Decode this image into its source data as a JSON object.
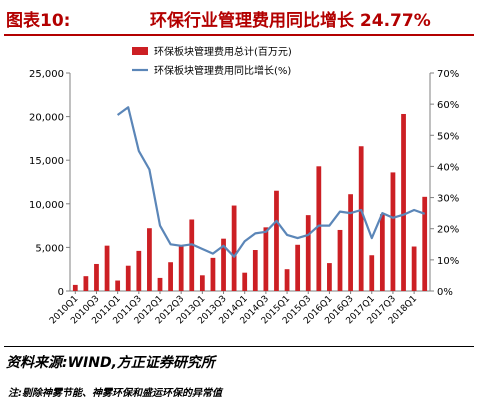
{
  "header": {
    "figure_label": "图表10:",
    "title": "环保行业管理费用同比增长 24.77%"
  },
  "footer": {
    "source": "资料来源:WIND,方正证券研究所",
    "note": "注:剔除神雾节能、神雾环保和盛运环保的异常值"
  },
  "colors": {
    "bar": "#cc1f24",
    "line": "#5b86b8",
    "title": "#b30000"
  },
  "chart_data": {
    "type": "bar",
    "categories": [
      "2010Q1",
      "2010Q2",
      "2010Q3",
      "2010Q4",
      "2011Q1",
      "2011Q2",
      "2011Q3",
      "2011Q4",
      "2012Q1",
      "2012Q2",
      "2012Q3",
      "2012Q4",
      "2013Q1",
      "2013Q2",
      "2013Q3",
      "2013Q4",
      "2014Q1",
      "2014Q2",
      "2014Q3",
      "2014Q4",
      "2015Q1",
      "2015Q2",
      "2015Q3",
      "2015Q4",
      "2016Q1",
      "2016Q2",
      "2016Q3",
      "2016Q4",
      "2017Q1",
      "2017Q2",
      "2017Q3",
      "2017Q4",
      "2018Q1",
      "2018Q2"
    ],
    "x_tick_labels": [
      "2010Q1",
      "2010Q3",
      "2011Q1",
      "2011Q3",
      "2012Q1",
      "2012Q3",
      "2013Q1",
      "2013Q3",
      "2014Q1",
      "2014Q3",
      "2015Q1",
      "2015Q3",
      "2016Q1",
      "2016Q3",
      "2017Q1",
      "2017Q3",
      "2018Q1"
    ],
    "series": [
      {
        "name": "环保板块管理费用总计(百万元)",
        "type": "bar",
        "axis": "left",
        "values": [
          700,
          1700,
          3100,
          5200,
          1200,
          2900,
          4600,
          7200,
          1500,
          3300,
          5200,
          8200,
          1800,
          3800,
          6000,
          9800,
          2100,
          4700,
          7300,
          11500,
          2500,
          5300,
          8700,
          14300,
          3200,
          7000,
          11100,
          16600,
          4100,
          8800,
          13600,
          20300,
          5100,
          10800
        ]
      },
      {
        "name": "环保板块管理费用同比增长(%)",
        "type": "line",
        "axis": "right",
        "values": [
          null,
          null,
          null,
          null,
          56.5,
          59,
          45,
          39,
          21,
          15,
          14.5,
          15,
          13.5,
          12,
          14.5,
          11,
          16,
          18.5,
          19,
          22.5,
          18,
          17,
          18,
          21,
          21,
          25.5,
          25,
          26,
          17,
          25,
          23.5,
          24.5,
          26,
          24.8
        ]
      }
    ],
    "y_left": {
      "ticks": [
        "0",
        "5,000",
        "10,000",
        "15,000",
        "20,000",
        "25,000"
      ],
      "min": 0,
      "max": 25000
    },
    "y_right": {
      "ticks": [
        "0%",
        "10%",
        "20%",
        "30%",
        "40%",
        "50%",
        "60%",
        "70%"
      ],
      "min": 0,
      "max": 70
    },
    "legend_position": "top-right",
    "grid": false
  }
}
